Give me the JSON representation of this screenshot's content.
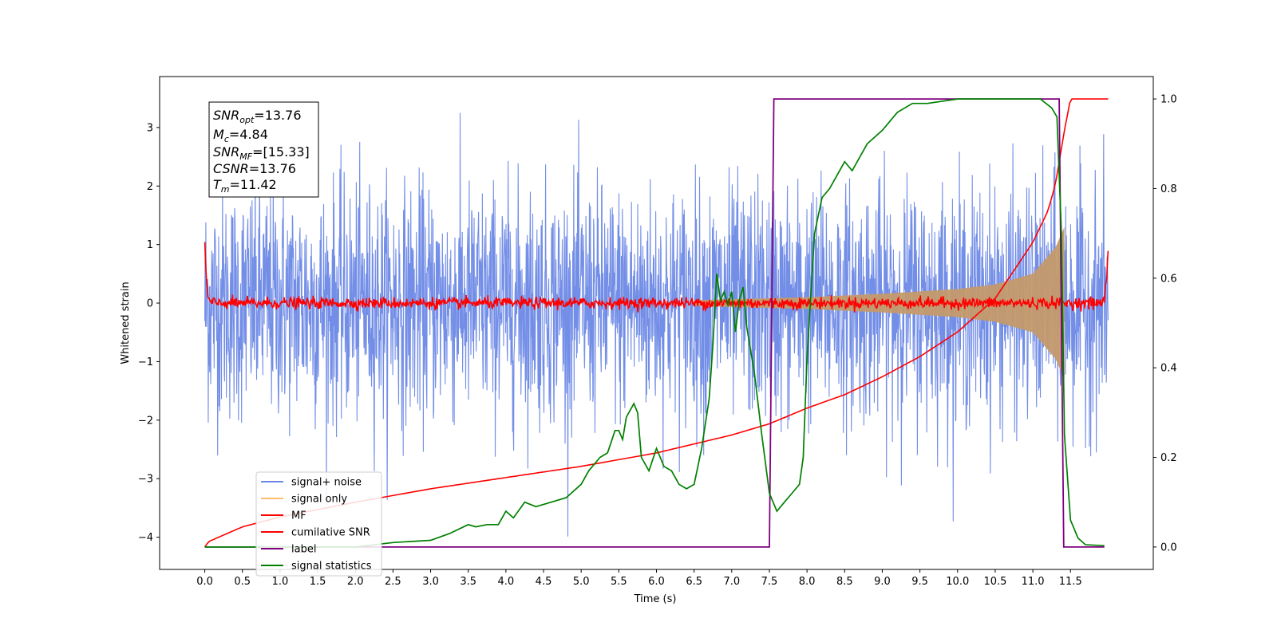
{
  "chart_data": {
    "type": "line",
    "xlabel": "Time (s)",
    "ylabel": "Whitened strain",
    "xlim": [
      -0.6,
      12.6
    ],
    "ylim": [
      -4.55,
      3.87
    ],
    "ylim_right": [
      -0.05,
      1.05
    ],
    "xticks": [
      "0.0",
      "0.5",
      "1.0",
      "1.5",
      "2.0",
      "2.5",
      "3.0",
      "3.5",
      "4.0",
      "4.5",
      "5.0",
      "5.5",
      "6.0",
      "6.5",
      "7.0",
      "7.5",
      "8.0",
      "8.5",
      "9.0",
      "9.5",
      "10.0",
      "10.5",
      "11.0",
      "11.5"
    ],
    "yticks_left": [
      "3",
      "2",
      "1",
      "0",
      "−1",
      "−2",
      "−3",
      "−4"
    ],
    "yticks_right": [
      "1.0",
      "0.8",
      "0.6",
      "0.4",
      "0.2",
      "0.0"
    ],
    "grid": false,
    "legend_position": "lower-left",
    "colors": {
      "signal_noise": "#6b88e6",
      "signal_only": "#ffbe6e",
      "mf": "#ff0000",
      "cumulative_snr": "#ff0000",
      "label": "#800080",
      "signal_statistics": "#008000",
      "chirp_fill": "#c49a6c"
    },
    "annotation": {
      "snr_opt": "=13.76",
      "mc": "=4.84",
      "snr_mf": "=[15.33]",
      "csnr": "=13.76",
      "tm": "=11.42"
    },
    "series": [
      {
        "name": "signal+ noise",
        "kind": "noise_band",
        "typical_abs": 1.6,
        "peak_max": 3.5,
        "peak_min": -4.15,
        "x_range": [
          0.0,
          12.0
        ]
      },
      {
        "name": "signal only",
        "kind": "chirp",
        "merger_time": 11.42,
        "amplitude_at": [
          [
            6.5,
            0.05
          ],
          [
            8.0,
            0.1
          ],
          [
            9.0,
            0.16
          ],
          [
            10.0,
            0.24
          ],
          [
            10.5,
            0.32
          ],
          [
            11.0,
            0.5
          ],
          [
            11.3,
            0.95
          ],
          [
            11.42,
            1.3
          ]
        ]
      },
      {
        "name": "MF",
        "kind": "noise_band",
        "x": [
          0.0,
          0.02,
          0.05,
          0.1,
          11.9,
          11.95,
          11.98,
          12.0
        ],
        "y": [
          1.0,
          0.4,
          0.05,
          0.0,
          0.0,
          0.05,
          0.4,
          0.9
        ],
        "jitter": 0.08
      },
      {
        "name": "cumilative SNR",
        "axis": "right",
        "x": [
          0.0,
          0.05,
          0.5,
          1.0,
          2.0,
          3.0,
          4.0,
          5.0,
          6.0,
          6.5,
          7.0,
          7.5,
          8.0,
          8.5,
          9.0,
          9.5,
          10.0,
          10.5,
          11.0,
          11.2,
          11.3,
          11.35,
          11.42,
          11.5,
          12.0
        ],
        "y": [
          0.0,
          0.012,
          0.045,
          0.067,
          0.1,
          0.13,
          0.155,
          0.18,
          0.21,
          0.23,
          0.25,
          0.275,
          0.31,
          0.34,
          0.38,
          0.425,
          0.48,
          0.555,
          0.68,
          0.75,
          0.81,
          0.86,
          0.93,
          1.0,
          1.0
        ]
      },
      {
        "name": "label",
        "axis": "right",
        "x": [
          0.0,
          7.5,
          7.56,
          11.35,
          11.41,
          11.95
        ],
        "y": [
          0.0,
          0.0,
          1.0,
          1.0,
          0.0,
          0.0
        ]
      },
      {
        "name": "signal statistics",
        "axis": "right",
        "x": [
          0.0,
          1.0,
          2.0,
          2.5,
          3.0,
          3.25,
          3.5,
          3.6,
          3.75,
          3.9,
          4.0,
          4.1,
          4.25,
          4.4,
          4.6,
          4.8,
          5.0,
          5.1,
          5.25,
          5.35,
          5.45,
          5.5,
          5.55,
          5.6,
          5.7,
          5.75,
          5.8,
          5.9,
          6.0,
          6.1,
          6.2,
          6.3,
          6.4,
          6.5,
          6.6,
          6.7,
          6.75,
          6.8,
          6.85,
          6.9,
          6.95,
          7.0,
          7.05,
          7.1,
          7.15,
          7.2,
          7.3,
          7.4,
          7.5,
          7.6,
          7.7,
          7.8,
          7.9,
          7.95,
          8.0,
          8.1,
          8.2,
          8.3,
          8.4,
          8.5,
          8.6,
          8.8,
          9.0,
          9.2,
          9.4,
          9.6,
          10.0,
          10.4,
          10.8,
          11.1,
          11.25,
          11.32,
          11.38,
          11.42,
          11.5,
          11.6,
          11.7,
          11.95
        ],
        "y": [
          0.0,
          0.0,
          0.0,
          0.01,
          0.015,
          0.03,
          0.05,
          0.045,
          0.05,
          0.05,
          0.08,
          0.065,
          0.1,
          0.09,
          0.1,
          0.11,
          0.14,
          0.17,
          0.2,
          0.21,
          0.26,
          0.26,
          0.24,
          0.29,
          0.32,
          0.3,
          0.2,
          0.17,
          0.22,
          0.18,
          0.17,
          0.14,
          0.13,
          0.14,
          0.22,
          0.33,
          0.45,
          0.61,
          0.55,
          0.57,
          0.54,
          0.57,
          0.48,
          0.55,
          0.58,
          0.49,
          0.39,
          0.25,
          0.12,
          0.08,
          0.1,
          0.12,
          0.14,
          0.2,
          0.42,
          0.7,
          0.78,
          0.8,
          0.83,
          0.86,
          0.84,
          0.9,
          0.93,
          0.97,
          0.99,
          0.99,
          1.0,
          1.0,
          1.0,
          1.0,
          0.98,
          0.96,
          0.7,
          0.25,
          0.06,
          0.02,
          0.005,
          0.003
        ]
      }
    ]
  }
}
